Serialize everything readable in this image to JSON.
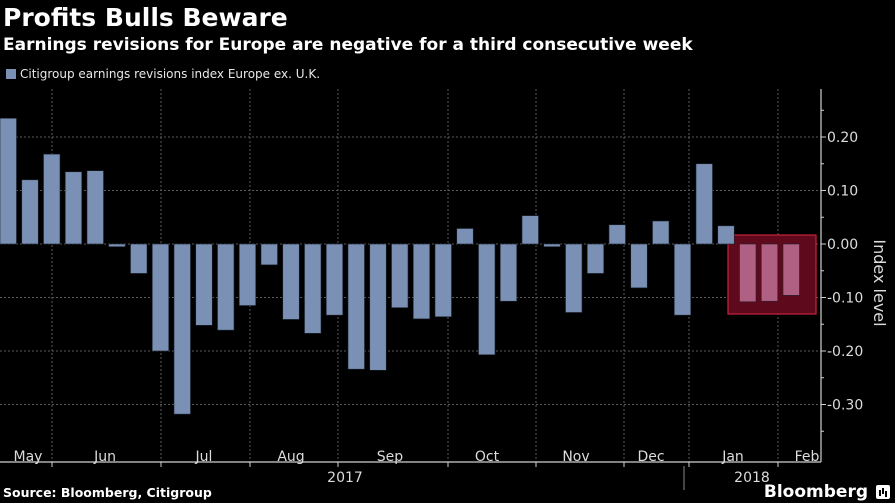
{
  "header": {
    "title": "Profits Bulls Beware",
    "subtitle": "Earnings revisions for Europe are negative for a third consecutive week"
  },
  "footer": {
    "source": "Source: Bloomberg, Citigroup",
    "brand": "Bloomberg",
    "brand_icon": "bloomberg-chart-icon"
  },
  "colors": {
    "bar": "#7a90b4",
    "highlight_bar": "#b06083",
    "highlight_fill": "#5e0a1c",
    "highlight_border": "#c8223c",
    "grid": "#5a5a5a",
    "axis": "#d0d0d0"
  },
  "chart_data": {
    "type": "bar",
    "title": "Profits Bulls Beware",
    "subtitle": "Earnings revisions for Europe are negative for a third consecutive week",
    "xlabel": "",
    "ylabel": "Index level",
    "ylim": [
      -0.38,
      0.29
    ],
    "y_ticks": [
      0.2,
      0.1,
      0.0,
      -0.1,
      -0.2,
      -0.3
    ],
    "y_tick_labels": [
      "0.20",
      "0.10",
      "0.00",
      "-0.10",
      "-0.20",
      "-0.30"
    ],
    "y_axis_position": "right",
    "grid": true,
    "legend": {
      "position": "top-left",
      "entries": [
        "Citigroup earnings revisions index Europe ex. U.K."
      ]
    },
    "x_month_labels": [
      "May",
      "Jun",
      "Jul",
      "Aug",
      "Sep",
      "Oct",
      "Nov",
      "Dec",
      "Jan",
      "Feb"
    ],
    "x_year_labels": [
      "2017",
      "2018"
    ],
    "series": [
      {
        "name": "Citigroup earnings revisions index Europe ex. U.K.",
        "values": [
          0.235,
          0.12,
          0.168,
          0.135,
          0.137,
          -0.005,
          -0.055,
          -0.2,
          -0.318,
          -0.152,
          -0.161,
          -0.115,
          -0.039,
          -0.141,
          -0.167,
          -0.133,
          -0.234,
          -0.236,
          -0.119,
          -0.14,
          -0.136,
          0.029,
          -0.207,
          -0.107,
          0.053,
          -0.005,
          -0.128,
          -0.055,
          0.036,
          -0.082,
          0.043,
          -0.133,
          0.15,
          0.034,
          -0.108,
          -0.107,
          -0.096
        ]
      }
    ],
    "highlighted_points": [
      34,
      35,
      36
    ],
    "annotation": "Last three weeks highlighted (negative revisions)"
  }
}
